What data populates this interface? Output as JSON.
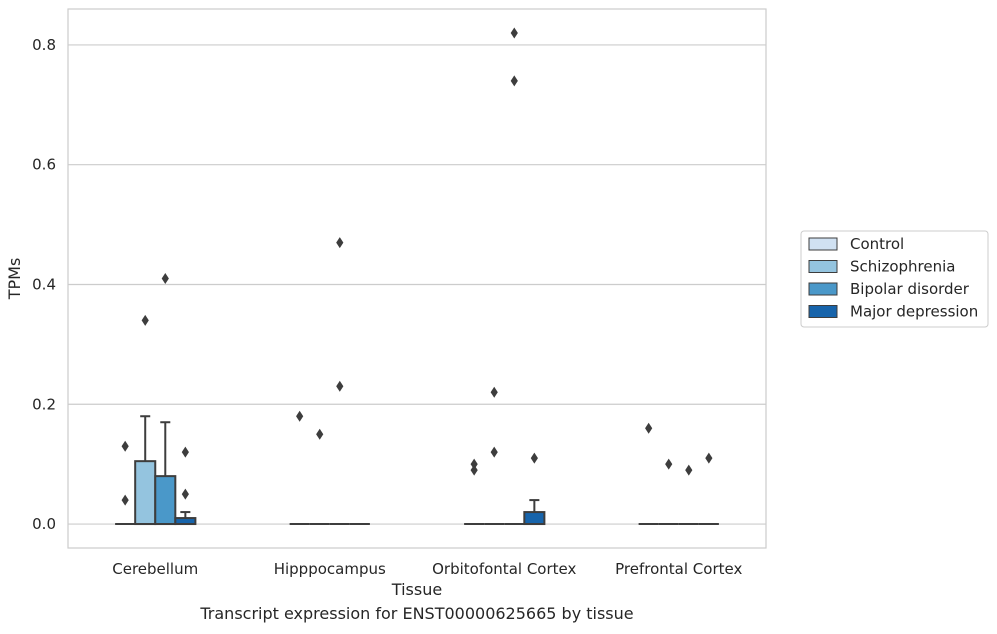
{
  "chart_data": {
    "type": "box",
    "ylabel": "TPMs",
    "xlabel": "Tissue",
    "caption": "Transcript expression for ENST00000625665 by tissue",
    "categories": [
      "Cerebellum",
      "Hipppocampus",
      "Orbitofontal Cortex",
      "Prefrontal Cortex"
    ],
    "ylim": [
      -0.04,
      0.86
    ],
    "yticks": [
      0.0,
      0.2,
      0.4,
      0.6,
      0.8
    ],
    "ytick_labels": [
      "0.0",
      "0.2",
      "0.4",
      "0.6",
      "0.8"
    ],
    "grid": "horizontal",
    "legend_position": "right",
    "series": [
      {
        "name": "Control",
        "color": "#d0e1f2",
        "boxes": [
          {
            "q1": 0,
            "median": 0,
            "q3": 0,
            "whisker_low": 0,
            "whisker_high": 0,
            "outliers": [
              0.04,
              0.13
            ]
          },
          {
            "q1": 0,
            "median": 0,
            "q3": 0,
            "whisker_low": 0,
            "whisker_high": 0,
            "outliers": [
              0.18
            ]
          },
          {
            "q1": 0,
            "median": 0,
            "q3": 0,
            "whisker_low": 0,
            "whisker_high": 0,
            "outliers": [
              0.09,
              0.1
            ]
          },
          {
            "q1": 0,
            "median": 0,
            "q3": 0,
            "whisker_low": 0,
            "whisker_high": 0,
            "outliers": [
              0.16
            ]
          }
        ]
      },
      {
        "name": "Schizophrenia",
        "color": "#94c4df",
        "boxes": [
          {
            "q1": 0,
            "median": 0,
            "q3": 0.105,
            "whisker_low": 0,
            "whisker_high": 0.18,
            "outliers": [
              0.34
            ]
          },
          {
            "q1": 0,
            "median": 0,
            "q3": 0,
            "whisker_low": 0,
            "whisker_high": 0,
            "outliers": [
              0.15
            ]
          },
          {
            "q1": 0,
            "median": 0,
            "q3": 0,
            "whisker_low": 0,
            "whisker_high": 0,
            "outliers": [
              0.12,
              0.22
            ]
          },
          {
            "q1": 0,
            "median": 0,
            "q3": 0,
            "whisker_low": 0,
            "whisker_high": 0,
            "outliers": [
              0.1
            ]
          }
        ]
      },
      {
        "name": "Bipolar disorder",
        "color": "#4a98c9",
        "boxes": [
          {
            "q1": 0,
            "median": 0,
            "q3": 0.08,
            "whisker_low": 0,
            "whisker_high": 0.17,
            "outliers": [
              0.41
            ]
          },
          {
            "q1": 0,
            "median": 0,
            "q3": 0,
            "whisker_low": 0,
            "whisker_high": 0,
            "outliers": [
              0.23,
              0.47
            ]
          },
          {
            "q1": 0,
            "median": 0,
            "q3": 0,
            "whisker_low": 0,
            "whisker_high": 0,
            "outliers": [
              0.74,
              0.82
            ]
          },
          {
            "q1": 0,
            "median": 0,
            "q3": 0,
            "whisker_low": 0,
            "whisker_high": 0,
            "outliers": [
              0.09
            ]
          }
        ]
      },
      {
        "name": "Major depression",
        "color": "#1764ab",
        "boxes": [
          {
            "q1": 0,
            "median": 0,
            "q3": 0.01,
            "whisker_low": 0,
            "whisker_high": 0.02,
            "outliers": [
              0.05,
              0.12
            ]
          },
          {
            "q1": 0,
            "median": 0,
            "q3": 0,
            "whisker_low": 0,
            "whisker_high": 0,
            "outliers": []
          },
          {
            "q1": 0,
            "median": 0,
            "q3": 0.02,
            "whisker_low": 0,
            "whisker_high": 0.04,
            "outliers": [
              0.11
            ]
          },
          {
            "q1": 0,
            "median": 0,
            "q3": 0,
            "whisker_low": 0,
            "whisker_high": 0,
            "outliers": [
              0.11
            ]
          }
        ]
      }
    ]
  }
}
